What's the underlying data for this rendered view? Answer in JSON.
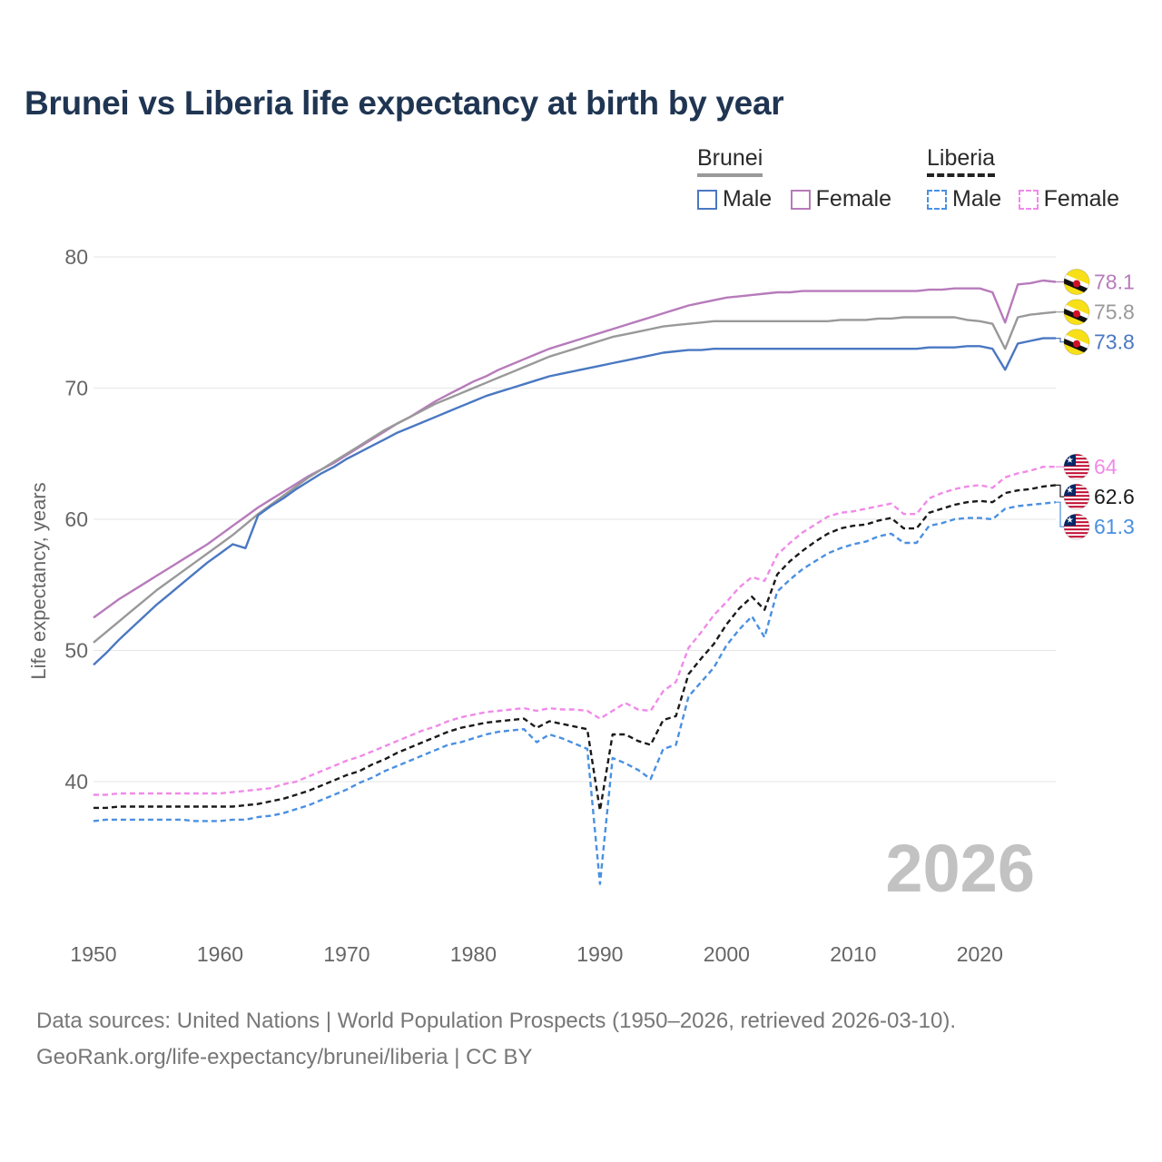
{
  "title": "Brunei vs Liberia life expectancy at birth by year",
  "legend": {
    "brunei_label": "Brunei",
    "liberia_label": "Liberia",
    "male_label": "Male",
    "female_label": "Female"
  },
  "footer": {
    "line1": "Data sources: United Nations | World Population Prospects (1950–2026, retrieved 2026-03-10).",
    "line2": "GeoRank.org/life-expectancy/brunei/liberia | CC BY"
  },
  "colors": {
    "brunei_male": "#4a78c2",
    "brunei_female": "#b77bbb",
    "brunei_total": "#999999",
    "liberia_male": "#4a90e2",
    "liberia_female": "#f08ae8",
    "liberia_total": "#1a1a1a",
    "grid": "#e6e6e6",
    "axis_text": "#666666",
    "year_watermark": "#c2c2c2"
  },
  "chart_data": {
    "type": "line",
    "title": "Brunei vs Liberia life expectancy at birth by year",
    "xlabel": "",
    "ylabel": "Life expectancy, years",
    "xlim": [
      1950,
      2026
    ],
    "ylim": [
      30,
      84
    ],
    "y_ticks": [
      40,
      50,
      60,
      70,
      80
    ],
    "x_ticks": [
      1950,
      1960,
      1970,
      1980,
      1990,
      2000,
      2010,
      2020
    ],
    "current_year": "2026",
    "legend_position": "top-right",
    "x": [
      1950,
      1951,
      1952,
      1953,
      1954,
      1955,
      1956,
      1957,
      1958,
      1959,
      1960,
      1961,
      1962,
      1963,
      1964,
      1965,
      1966,
      1967,
      1968,
      1969,
      1970,
      1971,
      1972,
      1973,
      1974,
      1975,
      1976,
      1977,
      1978,
      1979,
      1980,
      1981,
      1982,
      1983,
      1984,
      1985,
      1986,
      1987,
      1988,
      1989,
      1990,
      1991,
      1992,
      1993,
      1994,
      1995,
      1996,
      1997,
      1998,
      1999,
      2000,
      2001,
      2002,
      2003,
      2004,
      2005,
      2006,
      2007,
      2008,
      2009,
      2010,
      2011,
      2012,
      2013,
      2014,
      2015,
      2016,
      2017,
      2018,
      2019,
      2020,
      2021,
      2022,
      2023,
      2024,
      2025,
      2026
    ],
    "series": [
      {
        "name": "Brunei Female",
        "country": "Brunei",
        "sex": "Female",
        "dash": false,
        "end_label": "78.1",
        "values": [
          52.5,
          53.2,
          53.9,
          54.5,
          55.1,
          55.7,
          56.3,
          56.9,
          57.5,
          58.1,
          58.8,
          59.5,
          60.2,
          60.9,
          61.5,
          62.1,
          62.7,
          63.3,
          63.8,
          64.3,
          64.9,
          65.5,
          66.1,
          66.7,
          67.3,
          67.8,
          68.4,
          69.0,
          69.5,
          70.0,
          70.5,
          70.9,
          71.4,
          71.8,
          72.2,
          72.6,
          73.0,
          73.3,
          73.6,
          73.9,
          74.2,
          74.5,
          74.8,
          75.1,
          75.4,
          75.7,
          76.0,
          76.3,
          76.5,
          76.7,
          76.9,
          77.0,
          77.1,
          77.2,
          77.3,
          77.3,
          77.4,
          77.4,
          77.4,
          77.4,
          77.4,
          77.4,
          77.4,
          77.4,
          77.4,
          77.4,
          77.5,
          77.5,
          77.6,
          77.6,
          77.6,
          77.3,
          75.0,
          77.9,
          78.0,
          78.2,
          78.1
        ]
      },
      {
        "name": "Brunei Total",
        "country": "Brunei",
        "sex": "Total",
        "dash": false,
        "end_label": "75.8",
        "values": [
          50.6,
          51.4,
          52.2,
          53.0,
          53.8,
          54.6,
          55.3,
          56.0,
          56.7,
          57.4,
          58.1,
          58.8,
          59.6,
          60.4,
          61.1,
          61.8,
          62.5,
          63.2,
          63.8,
          64.4,
          65.0,
          65.6,
          66.2,
          66.8,
          67.3,
          67.8,
          68.3,
          68.8,
          69.2,
          69.6,
          70.0,
          70.4,
          70.8,
          71.2,
          71.6,
          72.0,
          72.4,
          72.7,
          73.0,
          73.3,
          73.6,
          73.9,
          74.1,
          74.3,
          74.5,
          74.7,
          74.8,
          74.9,
          75.0,
          75.1,
          75.1,
          75.1,
          75.1,
          75.1,
          75.1,
          75.1,
          75.1,
          75.1,
          75.1,
          75.2,
          75.2,
          75.2,
          75.3,
          75.3,
          75.4,
          75.4,
          75.4,
          75.4,
          75.4,
          75.2,
          75.1,
          74.9,
          73.0,
          75.4,
          75.6,
          75.7,
          75.8
        ]
      },
      {
        "name": "Brunei Male",
        "country": "Brunei",
        "sex": "Male",
        "dash": false,
        "end_label": "73.8",
        "values": [
          48.9,
          49.8,
          50.8,
          51.7,
          52.6,
          53.5,
          54.3,
          55.1,
          55.9,
          56.7,
          57.4,
          58.1,
          57.8,
          60.3,
          61.0,
          61.6,
          62.3,
          62.9,
          63.5,
          64.0,
          64.6,
          65.1,
          65.6,
          66.1,
          66.6,
          67.0,
          67.4,
          67.8,
          68.2,
          68.6,
          69.0,
          69.4,
          69.7,
          70.0,
          70.3,
          70.6,
          70.9,
          71.1,
          71.3,
          71.5,
          71.7,
          71.9,
          72.1,
          72.3,
          72.5,
          72.7,
          72.8,
          72.9,
          72.9,
          73.0,
          73.0,
          73.0,
          73.0,
          73.0,
          73.0,
          73.0,
          73.0,
          73.0,
          73.0,
          73.0,
          73.0,
          73.0,
          73.0,
          73.0,
          73.0,
          73.0,
          73.1,
          73.1,
          73.1,
          73.2,
          73.2,
          73.0,
          71.4,
          73.4,
          73.6,
          73.8,
          73.8
        ]
      },
      {
        "name": "Liberia Female",
        "country": "Liberia",
        "sex": "Female",
        "dash": true,
        "end_label": "64",
        "values": [
          39.0,
          39.0,
          39.1,
          39.1,
          39.1,
          39.1,
          39.1,
          39.1,
          39.1,
          39.1,
          39.1,
          39.2,
          39.3,
          39.4,
          39.5,
          39.8,
          40.0,
          40.4,
          40.8,
          41.2,
          41.6,
          41.9,
          42.3,
          42.7,
          43.1,
          43.5,
          43.9,
          44.2,
          44.6,
          44.9,
          45.1,
          45.3,
          45.4,
          45.5,
          45.6,
          45.4,
          45.6,
          45.5,
          45.5,
          45.4,
          44.8,
          45.4,
          46.0,
          45.5,
          45.4,
          46.9,
          47.6,
          50.2,
          51.4,
          52.7,
          53.7,
          54.8,
          55.6,
          55.3,
          57.3,
          58.2,
          59.0,
          59.6,
          60.2,
          60.5,
          60.6,
          60.8,
          61.0,
          61.2,
          60.4,
          60.4,
          61.6,
          62.0,
          62.3,
          62.5,
          62.6,
          62.4,
          63.2,
          63.5,
          63.7,
          64.0,
          64.0
        ]
      },
      {
        "name": "Liberia Total",
        "country": "Liberia",
        "sex": "Total",
        "dash": true,
        "end_label": "62.6",
        "values": [
          38.0,
          38.0,
          38.1,
          38.1,
          38.1,
          38.1,
          38.1,
          38.1,
          38.1,
          38.1,
          38.1,
          38.1,
          38.2,
          38.3,
          38.5,
          38.7,
          39.0,
          39.3,
          39.7,
          40.1,
          40.5,
          40.8,
          41.3,
          41.7,
          42.2,
          42.6,
          43.0,
          43.4,
          43.8,
          44.1,
          44.3,
          44.5,
          44.6,
          44.7,
          44.8,
          44.1,
          44.6,
          44.4,
          44.2,
          44.0,
          37.8,
          43.6,
          43.6,
          43.1,
          42.8,
          44.7,
          45.0,
          48.2,
          49.4,
          50.5,
          52.0,
          53.2,
          54.1,
          53.1,
          55.8,
          56.8,
          57.6,
          58.3,
          58.9,
          59.3,
          59.5,
          59.6,
          59.9,
          60.1,
          59.3,
          59.3,
          60.5,
          60.8,
          61.1,
          61.3,
          61.4,
          61.3,
          62.0,
          62.2,
          62.3,
          62.5,
          62.6
        ]
      },
      {
        "name": "Liberia Male",
        "country": "Liberia",
        "sex": "Male",
        "dash": true,
        "end_label": "61.3",
        "values": [
          37.0,
          37.1,
          37.1,
          37.1,
          37.1,
          37.1,
          37.1,
          37.1,
          37.0,
          37.0,
          37.0,
          37.1,
          37.1,
          37.3,
          37.4,
          37.6,
          37.9,
          38.2,
          38.6,
          39.0,
          39.4,
          39.9,
          40.3,
          40.8,
          41.2,
          41.6,
          42.0,
          42.4,
          42.8,
          43.0,
          43.3,
          43.6,
          43.8,
          43.9,
          44.0,
          43.0,
          43.6,
          43.3,
          42.9,
          42.5,
          32.2,
          41.8,
          41.4,
          40.9,
          40.2,
          42.5,
          42.8,
          46.5,
          47.6,
          48.7,
          50.4,
          51.6,
          52.6,
          51.0,
          54.5,
          55.4,
          56.2,
          56.8,
          57.4,
          57.8,
          58.1,
          58.3,
          58.7,
          58.9,
          58.2,
          58.2,
          59.5,
          59.7,
          60.0,
          60.1,
          60.1,
          60.0,
          60.8,
          61.0,
          61.1,
          61.2,
          61.3
        ]
      }
    ]
  }
}
